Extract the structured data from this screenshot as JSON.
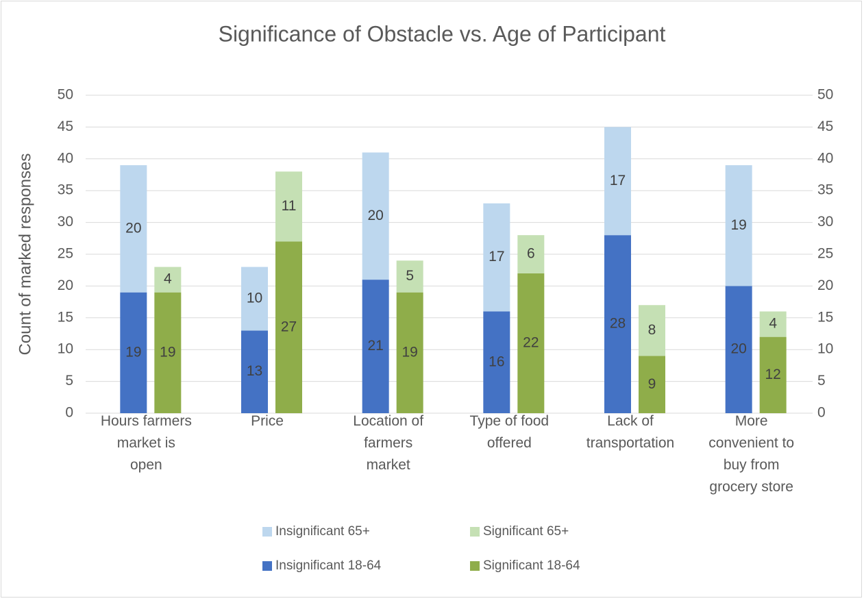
{
  "chart_data": {
    "type": "bar",
    "stacked": true,
    "title": "Significance of Obstacle vs. Age of Participant",
    "y_label": "Count of marked responses",
    "categories": [
      "Hours farmers market is open",
      "Price",
      "Location of farmers market",
      "Type of food offered",
      "Lack of transportation",
      "More convenient to buy from grocery store"
    ],
    "series": [
      {
        "name": "Insignificant 65+",
        "color": "#bdd7ee",
        "values": [
          20,
          10,
          20,
          17,
          17,
          19
        ]
      },
      {
        "name": "Significant 65+",
        "color": "#c5e0b4",
        "axis": "y2",
        "values": [
          4,
          11,
          5,
          6,
          8,
          4
        ]
      },
      {
        "name": "Insignificant 18-64",
        "color": "#4472c4",
        "values": [
          19,
          13,
          21,
          16,
          28,
          20
        ]
      },
      {
        "name": "Significant 18-64",
        "color": "#8fad4a",
        "axis": "y2",
        "values": [
          19,
          27,
          19,
          22,
          9,
          12
        ]
      }
    ],
    "ylim": [
      0,
      50
    ],
    "yticks": [
      0,
      5,
      10,
      15,
      20,
      25,
      30,
      35,
      40,
      45,
      50
    ],
    "y2lim": [
      0,
      50
    ],
    "y2ticks": [
      0,
      5,
      10,
      15,
      20,
      25,
      30,
      35,
      40,
      45,
      50
    ],
    "legend": "bottom"
  }
}
